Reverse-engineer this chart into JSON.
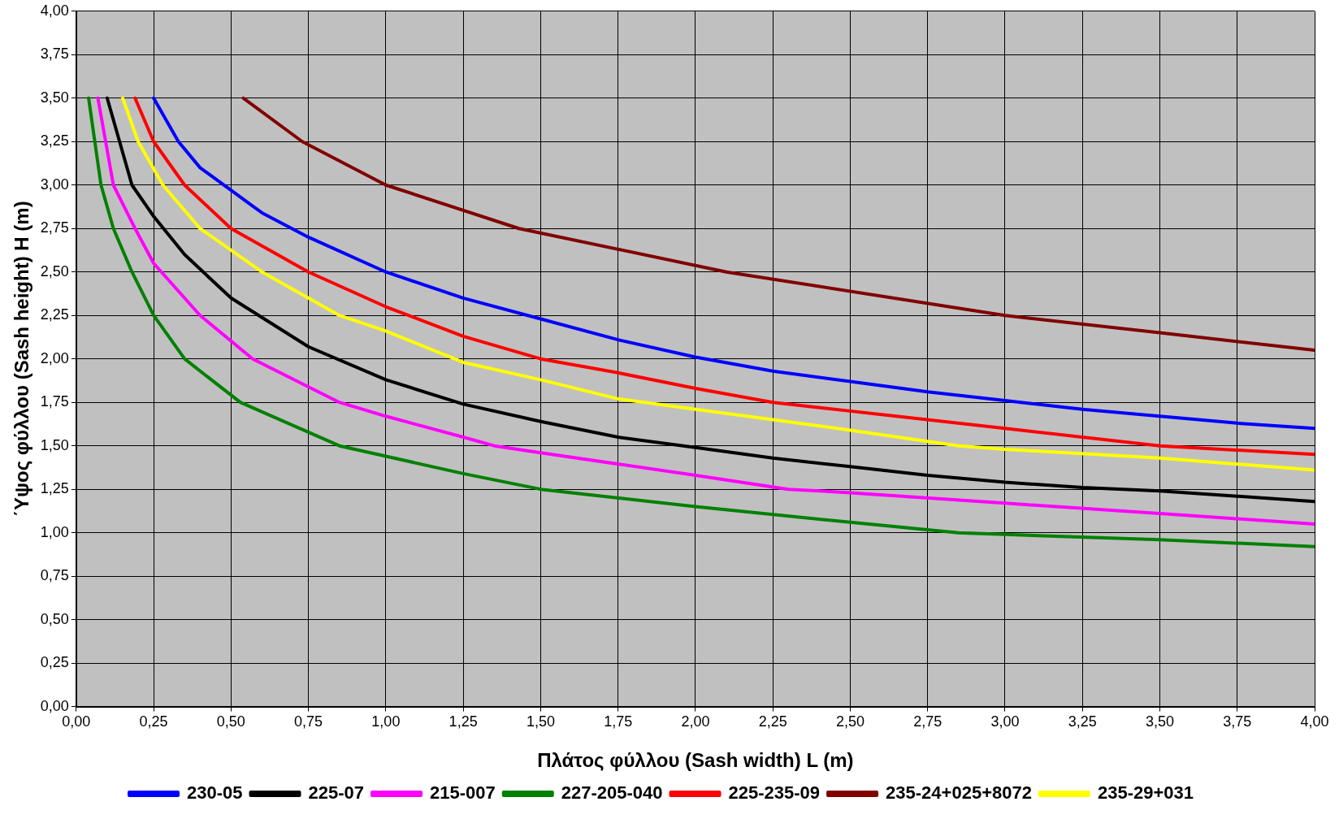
{
  "chart_data": {
    "type": "line",
    "xlabel": "Πλάτος φύλλου (Sash width) L (m)",
    "ylabel": "΄Υψος φύλλου (Sash height) H (m)",
    "xlim": [
      0,
      4
    ],
    "ylim": [
      0,
      4
    ],
    "xticks": [
      {
        "value": 0,
        "label": "0,00"
      },
      {
        "value": 0.25,
        "label": "0,25"
      },
      {
        "value": 0.5,
        "label": "0,50"
      },
      {
        "value": 0.75,
        "label": "0,75"
      },
      {
        "value": 1,
        "label": "1,00"
      },
      {
        "value": 1.25,
        "label": "1,25"
      },
      {
        "value": 1.5,
        "label": "1,50"
      },
      {
        "value": 1.75,
        "label": "1,75"
      },
      {
        "value": 2,
        "label": "2,00"
      },
      {
        "value": 2.25,
        "label": "2,25"
      },
      {
        "value": 2.5,
        "label": "2,50"
      },
      {
        "value": 2.75,
        "label": "2,75"
      },
      {
        "value": 3,
        "label": "3,00"
      },
      {
        "value": 3.25,
        "label": "3,25"
      },
      {
        "value": 3.5,
        "label": "3,50"
      },
      {
        "value": 3.75,
        "label": "3,75"
      },
      {
        "value": 4,
        "label": "4,00"
      }
    ],
    "yticks": [
      {
        "value": 0,
        "label": "0,00"
      },
      {
        "value": 0.25,
        "label": "0,25"
      },
      {
        "value": 0.5,
        "label": "0,50"
      },
      {
        "value": 0.75,
        "label": "0,75"
      },
      {
        "value": 1,
        "label": "1,00"
      },
      {
        "value": 1.25,
        "label": "1,25"
      },
      {
        "value": 1.5,
        "label": "1,50"
      },
      {
        "value": 1.75,
        "label": "1,75"
      },
      {
        "value": 2,
        "label": "2,00"
      },
      {
        "value": 2.25,
        "label": "2,25"
      },
      {
        "value": 2.5,
        "label": "2,50"
      },
      {
        "value": 2.75,
        "label": "2,75"
      },
      {
        "value": 3,
        "label": "3,00"
      },
      {
        "value": 3.25,
        "label": "3,25"
      },
      {
        "value": 3.5,
        "label": "3,50"
      },
      {
        "value": 3.75,
        "label": "3,75"
      },
      {
        "value": 4,
        "label": "4,00"
      }
    ],
    "grid": true,
    "legend": "bottom",
    "marker": "none",
    "line_style": "solid",
    "series": [
      {
        "name": "230-05",
        "color": "#0000ff",
        "x": [
          0.25,
          0.33,
          0.4,
          0.5,
          0.6,
          0.75,
          1,
          1.25,
          1.5,
          1.75,
          2,
          2.25,
          2.5,
          2.75,
          3,
          3.25,
          3.5,
          3.75,
          4
        ],
        "values": [
          3.5,
          3.25,
          3.1,
          2.97,
          2.84,
          2.7,
          2.5,
          2.35,
          2.23,
          2.11,
          2.01,
          1.93,
          1.87,
          1.81,
          1.76,
          1.71,
          1.67,
          1.63,
          1.6
        ]
      },
      {
        "name": "225-07",
        "color": "#000000",
        "x": [
          0.1,
          0.14,
          0.18,
          0.25,
          0.35,
          0.5,
          0.75,
          1,
          1.25,
          1.5,
          1.75,
          2,
          2.25,
          2.5,
          2.75,
          3,
          3.25,
          3.5,
          3.75,
          4
        ],
        "values": [
          3.5,
          3.25,
          3.0,
          2.82,
          2.6,
          2.35,
          2.07,
          1.88,
          1.74,
          1.64,
          1.55,
          1.49,
          1.43,
          1.38,
          1.33,
          1.29,
          1.26,
          1.24,
          1.21,
          1.18
        ]
      },
      {
        "name": "215-007",
        "color": "#ff00ff",
        "x": [
          0.07,
          0.12,
          0.19,
          0.25,
          0.4,
          0.57,
          0.85,
          1,
          1.25,
          1.35,
          1.5,
          2,
          2.3,
          2.5,
          3,
          3.5,
          4
        ],
        "values": [
          3.5,
          3.0,
          2.75,
          2.55,
          2.25,
          2.0,
          1.75,
          1.67,
          1.55,
          1.5,
          1.46,
          1.33,
          1.25,
          1.23,
          1.17,
          1.11,
          1.05
        ]
      },
      {
        "name": "227-205-040",
        "color": "#008000",
        "x": [
          0.04,
          0.08,
          0.12,
          0.18,
          0.25,
          0.35,
          0.53,
          0.85,
          1,
          1.25,
          1.5,
          2,
          2.5,
          2.85,
          3,
          3.5,
          4
        ],
        "values": [
          3.5,
          3.0,
          2.75,
          2.5,
          2.25,
          2.0,
          1.75,
          1.5,
          1.44,
          1.34,
          1.25,
          1.15,
          1.06,
          1.0,
          0.99,
          0.96,
          0.92
        ]
      },
      {
        "name": "225-235-09",
        "color": "#ff0000",
        "x": [
          0.19,
          0.25,
          0.35,
          0.5,
          0.75,
          1,
          1.25,
          1.5,
          1.75,
          2,
          2.25,
          2.5,
          3,
          3.5,
          4
        ],
        "values": [
          3.5,
          3.25,
          3.0,
          2.75,
          2.5,
          2.3,
          2.13,
          2.0,
          1.92,
          1.83,
          1.75,
          1.7,
          1.6,
          1.5,
          1.45
        ]
      },
      {
        "name": "235-24+025+8072",
        "color": "#800000",
        "x": [
          0.54,
          0.73,
          1,
          1.43,
          2.1,
          3,
          3.5,
          4
        ],
        "values": [
          3.5,
          3.25,
          3.0,
          2.75,
          2.5,
          2.25,
          2.15,
          2.05
        ]
      },
      {
        "name": "235-29+031",
        "color": "#ffff00",
        "x": [
          0.15,
          0.2,
          0.28,
          0.4,
          0.6,
          0.85,
          1,
          1.25,
          1.5,
          1.75,
          2,
          2.25,
          2.5,
          2.85,
          3,
          3.5,
          4
        ],
        "values": [
          3.5,
          3.25,
          3.0,
          2.75,
          2.5,
          2.25,
          2.16,
          1.98,
          1.88,
          1.77,
          1.71,
          1.65,
          1.59,
          1.5,
          1.48,
          1.43,
          1.36
        ]
      }
    ]
  }
}
